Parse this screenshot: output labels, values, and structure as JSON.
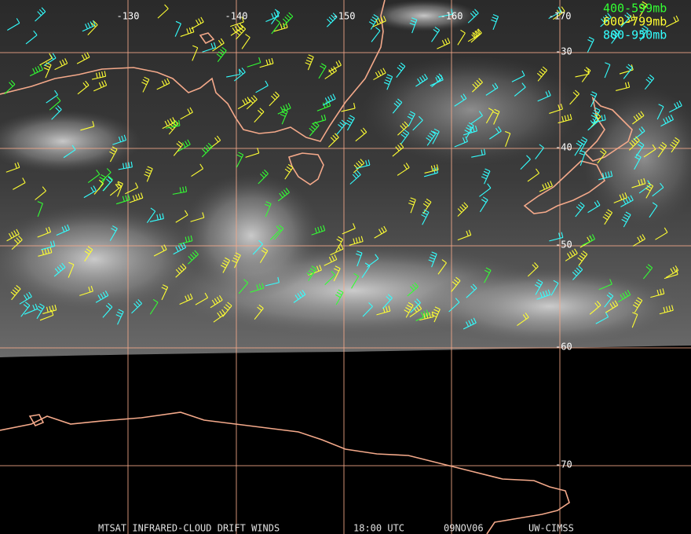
{
  "longitude_labels": [
    "-130",
    "-140",
    "-150",
    "-160",
    "-170"
  ],
  "latitude_labels": [
    "-30",
    "-40",
    "-50",
    "-60",
    "-70"
  ],
  "legend": [
    {
      "label": "400-599mb",
      "color": "#33ff33"
    },
    {
      "label": "600-799mb",
      "color": "#ffff33"
    },
    {
      "label": "800-950mb",
      "color": "#33ffff"
    }
  ],
  "footer": {
    "product": "MTSAT INFRARED-CLOUD DRIFT WINDS",
    "time": "18:00 UTC",
    "date": "09NOV06",
    "source": "UW-CIMSS"
  }
}
